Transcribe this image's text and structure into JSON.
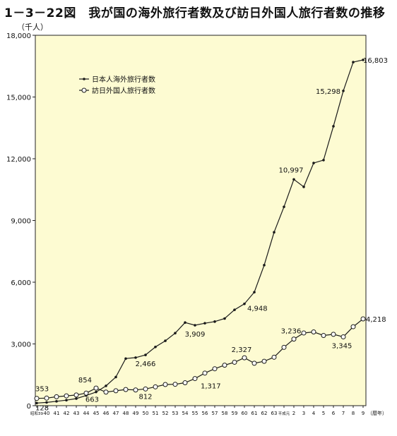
{
  "title": "1－3－22図　我が国の海外旅行者数及び訪日外国人旅行者数の推移",
  "unit": "（千人）",
  "chart_data": {
    "type": "line",
    "title": "1－3－22図　我が国の海外旅行者数及び訪日外国人旅行者数の推移",
    "ylabel": "（千人）",
    "xlabel": "",
    "x_unit": "（暦年）",
    "ylim": [
      0,
      18000
    ],
    "yticks": [
      0,
      3000,
      6000,
      9000,
      12000,
      15000,
      18000
    ],
    "ytick_labels": [
      "0",
      "3,000",
      "6,000",
      "9,000",
      "12,000",
      "15,000",
      "18,000"
    ],
    "x_tick_labels": [
      "昭和39",
      "40",
      "41",
      "42",
      "43",
      "44",
      "45",
      "46",
      "47",
      "48",
      "49",
      "50",
      "51",
      "52",
      "53",
      "54",
      "55",
      "56",
      "57",
      "58",
      "59",
      "60",
      "61",
      "62",
      "63",
      "平成元",
      "2",
      "3",
      "4",
      "5",
      "6",
      "7",
      "8",
      "9"
    ],
    "grid": false,
    "legend": "top-left",
    "series": [
      {
        "name": "日本人海外旅行者数",
        "marker": "filled",
        "values": [
          128,
          159,
          212,
          267,
          344,
          493,
          663,
          961,
          1392,
          2289,
          2336,
          2466,
          2853,
          3151,
          3525,
          4038,
          3909,
          4006,
          4086,
          4233,
          4659,
          4948,
          5516,
          6829,
          8427,
          9663,
          10997,
          10634,
          11791,
          11934,
          13579,
          15298,
          16695,
          16803
        ]
      },
      {
        "name": "訪日外国人旅行者数",
        "marker": "open",
        "values": [
          353,
          367,
          433,
          477,
          519,
          609,
          854,
          660,
          724,
          785,
          764,
          812,
          915,
          1028,
          1039,
          1113,
          1317,
          1583,
          1793,
          1968,
          2110,
          2327,
          2062,
          2155,
          2355,
          2835,
          3236,
          3533,
          3582,
          3410,
          3468,
          3345,
          3837,
          4218
        ]
      }
    ],
    "data_labels": [
      {
        "series": 0,
        "index": 0,
        "text": "128"
      },
      {
        "series": 1,
        "index": 0,
        "text": "353"
      },
      {
        "series": 1,
        "index": 6,
        "text": "854"
      },
      {
        "series": 0,
        "index": 6,
        "text": "663"
      },
      {
        "series": 0,
        "index": 11,
        "text": "2,466"
      },
      {
        "series": 1,
        "index": 11,
        "text": "812"
      },
      {
        "series": 0,
        "index": 16,
        "text": "3,909"
      },
      {
        "series": 1,
        "index": 16,
        "text": "1,317"
      },
      {
        "series": 0,
        "index": 21,
        "text": "4,948"
      },
      {
        "series": 1,
        "index": 21,
        "text": "2,327"
      },
      {
        "series": 0,
        "index": 26,
        "text": "10,997"
      },
      {
        "series": 1,
        "index": 26,
        "text": "3,236"
      },
      {
        "series": 0,
        "index": 31,
        "text": "15,298"
      },
      {
        "series": 1,
        "index": 31,
        "text": "3,345"
      },
      {
        "series": 0,
        "index": 33,
        "text": "16,803"
      },
      {
        "series": 1,
        "index": 33,
        "text": "4,218"
      }
    ]
  },
  "colors": {
    "plot_background": "#fdfbd2",
    "line": "#1a1a1a",
    "text": "#111111"
  }
}
